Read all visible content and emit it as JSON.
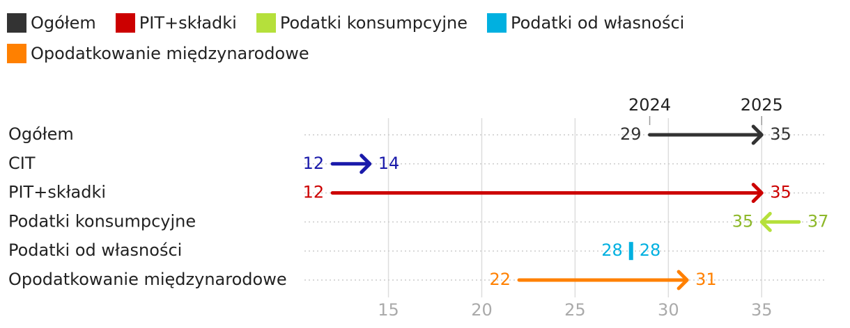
{
  "chart_data": {
    "type": "arrow",
    "legend": [
      {
        "name": "Ogółem",
        "color": "#333333"
      },
      {
        "name": "PIT+składki",
        "color": "#cc0000"
      },
      {
        "name": "Podatki konsumpcyjne",
        "color": "#b5e03b"
      },
      {
        "name": "Podatki od własności",
        "color": "#00b0e0"
      },
      {
        "name": "Opodatkowanie międzynarodowe",
        "color": "#ff8000"
      }
    ],
    "categories": [
      "Ogółem",
      "CIT",
      "PIT+składki",
      "Podatki konsumpcyjne",
      "Podatki od własności",
      "Opodatkowanie międzynarodowe"
    ],
    "colors": [
      "#333333",
      "#1a1aaa",
      "#cc0000",
      "#b5e03b",
      "#00b0e0",
      "#ff8000"
    ],
    "label_colors": [
      "#333333",
      "#1a1aaa",
      "#cc0000",
      "#8db82a",
      "#00b0e0",
      "#ff8000"
    ],
    "series": [
      {
        "name": "2024",
        "values": [
          29,
          12,
          12,
          37,
          28,
          22
        ]
      },
      {
        "name": "2025",
        "values": [
          35,
          14,
          35,
          35,
          28,
          31
        ]
      }
    ],
    "xlim": [
      10.5,
      38.5
    ],
    "xticks": [
      15,
      20,
      25,
      30,
      35
    ],
    "grid": true
  }
}
